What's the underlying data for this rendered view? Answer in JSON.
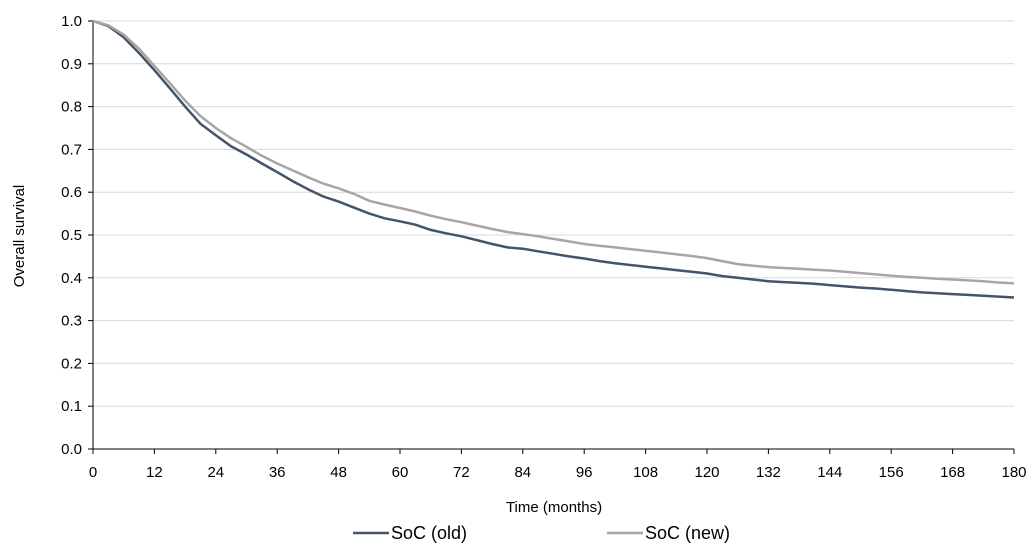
{
  "chart_data": {
    "type": "line",
    "title": "",
    "xlabel": "Time (months)",
    "ylabel": "Overall survival",
    "xlim": [
      0,
      180
    ],
    "ylim": [
      0,
      1
    ],
    "x_ticks": [
      0,
      12,
      24,
      36,
      48,
      60,
      72,
      84,
      96,
      108,
      120,
      132,
      144,
      156,
      168,
      180
    ],
    "y_ticks": [
      "0.0",
      "0.1",
      "0.2",
      "0.3",
      "0.4",
      "0.5",
      "0.6",
      "0.7",
      "0.8",
      "0.9",
      "1.0"
    ],
    "grid": "horizontal",
    "legend_position": "bottom",
    "x": [
      0,
      3,
      6,
      9,
      12,
      15,
      18,
      21,
      24,
      27,
      30,
      33,
      36,
      39,
      42,
      45,
      48,
      51,
      54,
      57,
      60,
      63,
      66,
      69,
      72,
      75,
      78,
      81,
      84,
      87,
      90,
      93,
      96,
      99,
      102,
      105,
      108,
      111,
      114,
      117,
      120,
      123,
      126,
      129,
      132,
      135,
      138,
      141,
      144,
      147,
      150,
      153,
      156,
      159,
      162,
      165,
      168,
      171,
      174,
      177,
      180
    ],
    "series": [
      {
        "name": "SoC (old)",
        "color": "#44546a",
        "values": [
          1.0,
          0.988,
          0.962,
          0.925,
          0.885,
          0.843,
          0.8,
          0.76,
          0.733,
          0.707,
          0.688,
          0.667,
          0.647,
          0.626,
          0.607,
          0.59,
          0.578,
          0.564,
          0.55,
          0.539,
          0.532,
          0.524,
          0.512,
          0.504,
          0.497,
          0.488,
          0.479,
          0.471,
          0.468,
          0.462,
          0.456,
          0.45,
          0.445,
          0.439,
          0.434,
          0.43,
          0.426,
          0.422,
          0.418,
          0.414,
          0.41,
          0.404,
          0.4,
          0.396,
          0.392,
          0.39,
          0.388,
          0.386,
          0.383,
          0.38,
          0.377,
          0.375,
          0.372,
          0.369,
          0.366,
          0.364,
          0.362,
          0.36,
          0.358,
          0.356,
          0.354
        ]
      },
      {
        "name": "SoC (new)",
        "color": "#a6a6a6",
        "values": [
          1.0,
          0.99,
          0.968,
          0.935,
          0.895,
          0.855,
          0.814,
          0.778,
          0.75,
          0.726,
          0.706,
          0.685,
          0.667,
          0.651,
          0.635,
          0.62,
          0.609,
          0.596,
          0.58,
          0.571,
          0.563,
          0.555,
          0.545,
          0.537,
          0.53,
          0.522,
          0.514,
          0.507,
          0.502,
          0.497,
          0.491,
          0.485,
          0.479,
          0.475,
          0.471,
          0.467,
          0.463,
          0.459,
          0.455,
          0.451,
          0.446,
          0.439,
          0.432,
          0.428,
          0.425,
          0.423,
          0.421,
          0.419,
          0.417,
          0.414,
          0.411,
          0.408,
          0.405,
          0.402,
          0.4,
          0.398,
          0.396,
          0.394,
          0.392,
          0.389,
          0.387
        ]
      }
    ]
  }
}
